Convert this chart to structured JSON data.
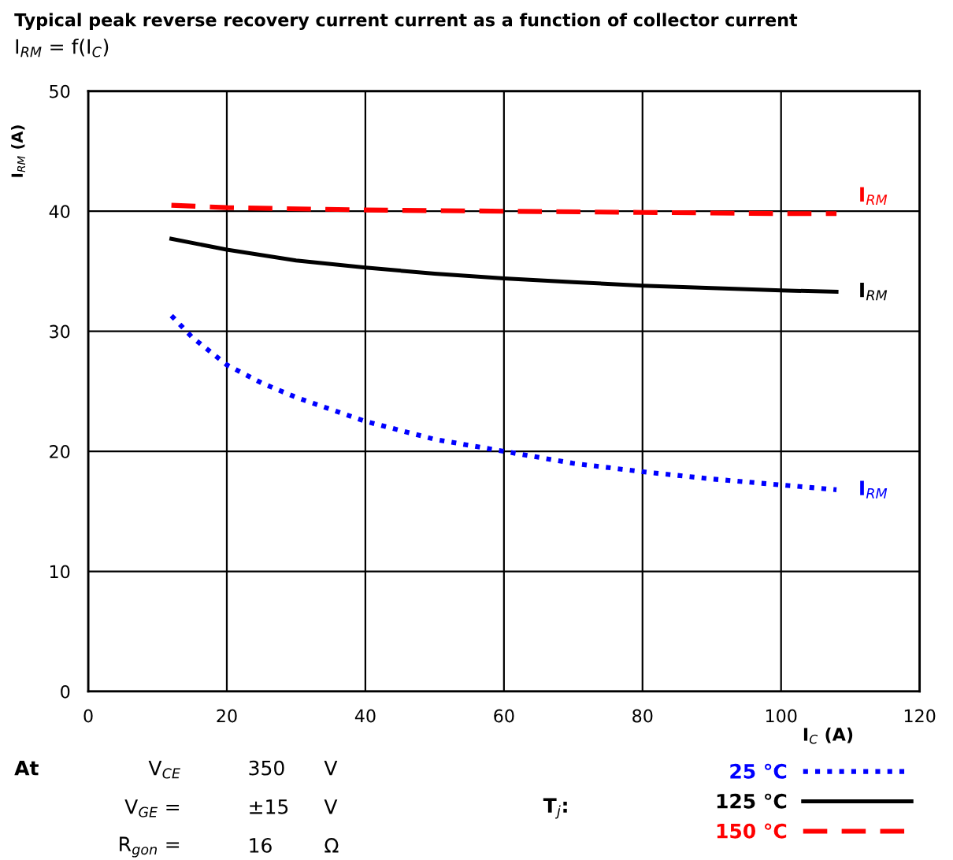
{
  "chart_data": {
    "type": "line",
    "title": "Typical peak reverse recovery current current as a function of collector current",
    "subtitle": "I$_{RM}$ = f(I$_{C}$)",
    "xlabel": "I$_{C}$ (A)",
    "ylabel": "I$_{RM}$ (A)",
    "xlim": [
      0,
      120
    ],
    "xticks": [
      0,
      20,
      40,
      60,
      80,
      100,
      120
    ],
    "ylim": [
      0,
      50
    ],
    "yticks": [
      0,
      10,
      20,
      30,
      40,
      50
    ],
    "grid": true,
    "legend": "bottom right",
    "marker": "none",
    "series": [
      {
        "name": "25 °C",
        "color": "#0000ff",
        "line_style": "dotted",
        "x": [
          12,
          15,
          20,
          25,
          30,
          40,
          50,
          60,
          70,
          80,
          90,
          100,
          108
        ],
        "values": [
          31.3,
          29.5,
          27.2,
          25.7,
          24.5,
          22.5,
          21.0,
          20.0,
          19.0,
          18.3,
          17.7,
          17.2,
          16.8
        ]
      },
      {
        "name": "125 °C",
        "color": "#000000",
        "line_style": "solid",
        "x": [
          12,
          20,
          30,
          40,
          50,
          60,
          70,
          80,
          90,
          100,
          108
        ],
        "values": [
          37.7,
          36.8,
          35.9,
          35.3,
          34.8,
          34.4,
          34.1,
          33.8,
          33.6,
          33.4,
          33.3
        ]
      },
      {
        "name": "150 °C",
        "color": "#ff0000",
        "line_style": "dashed",
        "x": [
          12,
          20,
          40,
          60,
          80,
          100,
          108
        ],
        "values": [
          40.5,
          40.3,
          40.1,
          40.0,
          39.9,
          39.8,
          39.8
        ]
      }
    ],
    "annotations": [
      "I$_{RM}$",
      "I$_{RM}$",
      "I$_{RM}$",
      "At",
      "V$_{CE}$",
      "350",
      "V",
      "V$_{GE}$ =",
      "±15",
      "V",
      "R$_{gon}$ =",
      "16",
      "Ω",
      "T$_{j}$:"
    ]
  }
}
